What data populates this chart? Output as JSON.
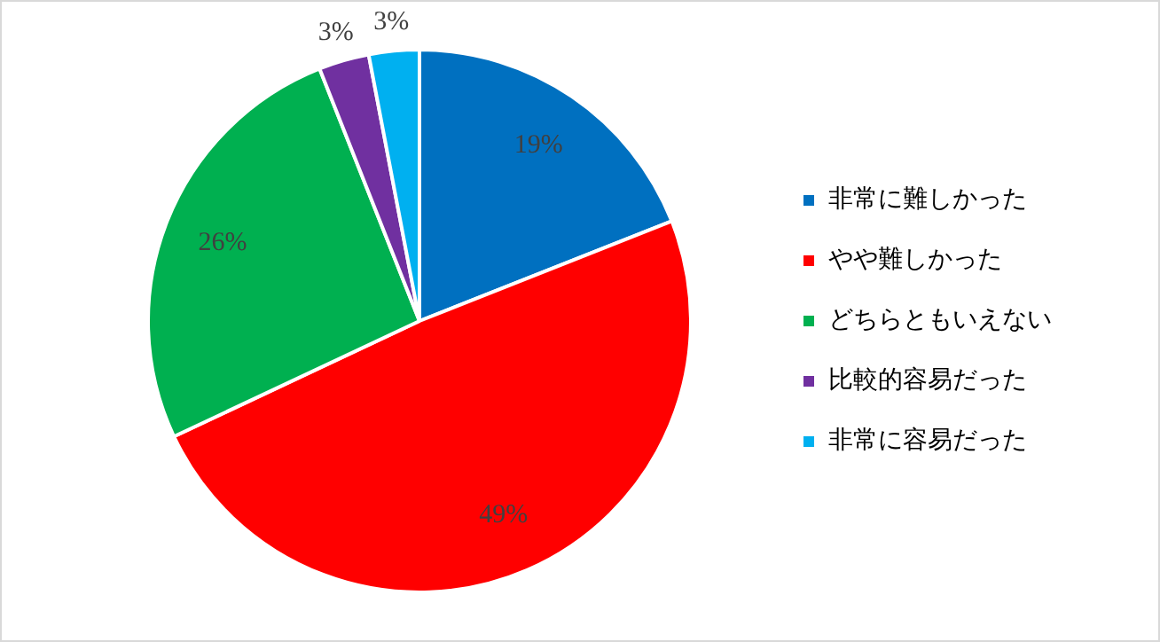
{
  "chart_data": {
    "type": "pie",
    "categories": [
      "非常に難しかった",
      "やや難しかった",
      "どちらともいえない",
      "比較的容易だった",
      "非常に容易だった"
    ],
    "values": [
      19,
      49,
      26,
      3,
      3
    ],
    "colors": [
      "#0070c0",
      "#ff0000",
      "#00b050",
      "#7030a0",
      "#00b0f0"
    ],
    "value_labels": [
      "19%",
      "49%",
      "26%",
      "3%",
      "3%"
    ],
    "legend": "right"
  }
}
